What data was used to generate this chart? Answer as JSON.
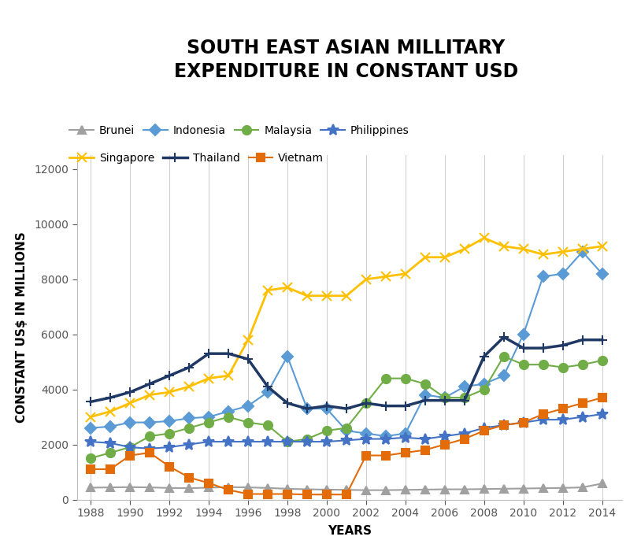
{
  "title": "SOUTH EAST ASIAN MILLITARY\nEXPENDITURE IN CONSTANT USD",
  "xlabel": "YEARS",
  "ylabel": "CONSTANT US$ IN MILLIONS",
  "years": [
    1988,
    1989,
    1990,
    1991,
    1992,
    1993,
    1994,
    1995,
    1996,
    1997,
    1998,
    1999,
    2000,
    2001,
    2002,
    2003,
    2004,
    2005,
    2006,
    2007,
    2008,
    2009,
    2010,
    2011,
    2012,
    2013,
    2014
  ],
  "series": [
    {
      "name": "Brunei",
      "color": "#A0A0A0",
      "marker": "^",
      "markersize": 7,
      "linewidth": 1.5,
      "values": [
        430,
        440,
        450,
        440,
        420,
        410,
        430,
        450,
        440,
        420,
        390,
        370,
        360,
        350,
        340,
        340,
        350,
        360,
        370,
        370,
        380,
        390,
        400,
        410,
        420,
        440,
        580
      ]
    },
    {
      "name": "Indonesia",
      "color": "#5B9BD5",
      "marker": "D",
      "markersize": 7,
      "linewidth": 1.5,
      "values": [
        2600,
        2650,
        2800,
        2800,
        2850,
        2950,
        3000,
        3200,
        3400,
        3900,
        5200,
        3300,
        3300,
        2500,
        2400,
        2300,
        2400,
        3800,
        3700,
        4100,
        4200,
        4500,
        6000,
        8100,
        8200,
        9000,
        8200
      ]
    },
    {
      "name": "Malaysia",
      "color": "#70AD47",
      "marker": "o",
      "markersize": 8,
      "linewidth": 1.5,
      "values": [
        1500,
        1700,
        1900,
        2300,
        2400,
        2600,
        2800,
        3000,
        2800,
        2700,
        2100,
        2200,
        2500,
        2600,
        3500,
        4400,
        4400,
        4200,
        3700,
        3700,
        4000,
        5200,
        4900,
        4900,
        4800,
        4900,
        5050
      ]
    },
    {
      "name": "Philippines",
      "color": "#4472C4",
      "marker": "*",
      "markersize": 10,
      "linewidth": 1.5,
      "values": [
        2100,
        2050,
        1900,
        1850,
        1900,
        2000,
        2100,
        2100,
        2100,
        2100,
        2100,
        2100,
        2100,
        2150,
        2200,
        2200,
        2250,
        2200,
        2300,
        2400,
        2600,
        2700,
        2800,
        2900,
        2900,
        3000,
        3100
      ]
    },
    {
      "name": "Singapore",
      "color": "#FFC000",
      "marker": "x",
      "markersize": 8,
      "linewidth": 2.0,
      "values": [
        3000,
        3200,
        3500,
        3800,
        3900,
        4100,
        4400,
        4500,
        5800,
        7600,
        7700,
        7400,
        7400,
        7400,
        8000,
        8100,
        8200,
        8800,
        8800,
        9100,
        9500,
        9200,
        9100,
        8900,
        9000,
        9100,
        9200
      ]
    },
    {
      "name": "Thailand",
      "color": "#1F3864",
      "marker": "+",
      "markersize": 9,
      "linewidth": 2.5,
      "values": [
        3550,
        3700,
        3900,
        4200,
        4500,
        4800,
        5300,
        5300,
        5100,
        4100,
        3500,
        3300,
        3400,
        3300,
        3500,
        3400,
        3400,
        3600,
        3600,
        3600,
        5200,
        5900,
        5500,
        5500,
        5600,
        5800,
        5800
      ]
    },
    {
      "name": "Vietnam",
      "color": "#E36C09",
      "marker": "s",
      "markersize": 7,
      "linewidth": 1.5,
      "values": [
        1100,
        1100,
        1600,
        1700,
        1200,
        800,
        600,
        350,
        200,
        200,
        200,
        180,
        180,
        180,
        1600,
        1600,
        1700,
        1800,
        2000,
        2200,
        2500,
        2700,
        2800,
        3100,
        3300,
        3500,
        3700
      ]
    }
  ],
  "ylim": [
    0,
    12500
  ],
  "yticks": [
    0,
    2000,
    4000,
    6000,
    8000,
    10000,
    12000
  ],
  "xtick_years": [
    1988,
    1990,
    1992,
    1994,
    1996,
    1998,
    2000,
    2002,
    2004,
    2006,
    2008,
    2010,
    2012,
    2014
  ],
  "background_color": "#FFFFFF",
  "grid_color": "#D0D0D0",
  "title_fontsize": 17,
  "axis_label_fontsize": 11,
  "tick_fontsize": 10,
  "legend_fontsize": 10
}
